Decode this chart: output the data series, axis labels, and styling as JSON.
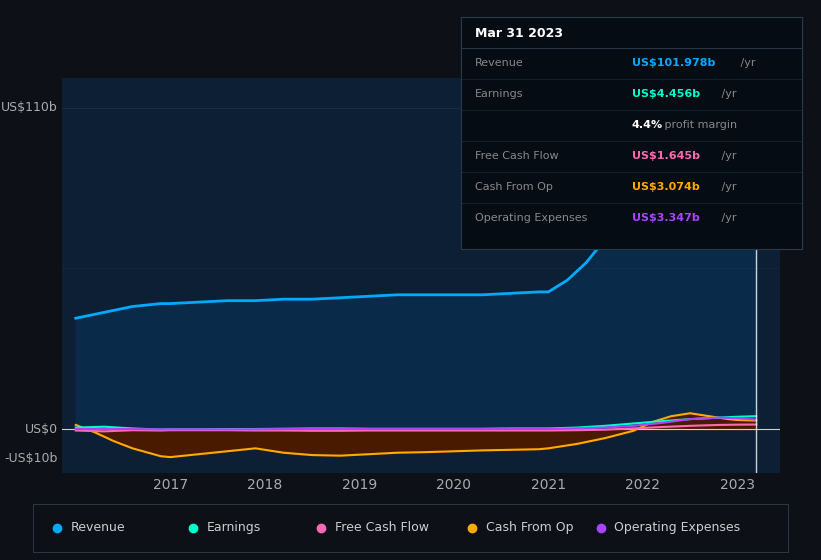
{
  "bg_color": "#0d1117",
  "plot_bg_color": "#0d1f35",
  "ylabel_top": "US$110b",
  "ylabel_zero": "US$0",
  "ylabel_neg": "-US$10b",
  "x_ticks": [
    2017,
    2018,
    2019,
    2020,
    2021,
    2022,
    2023
  ],
  "legend": [
    {
      "label": "Revenue",
      "color": "#00aaff"
    },
    {
      "label": "Earnings",
      "color": "#00ffcc"
    },
    {
      "label": "Free Cash Flow",
      "color": "#ff69b4"
    },
    {
      "label": "Cash From Op",
      "color": "#ffaa00"
    },
    {
      "label": "Operating Expenses",
      "color": "#aa44ff"
    }
  ],
  "tooltip_title": "Mar 31 2023",
  "tooltip_rows": [
    {
      "label": "Revenue",
      "value": "US$101.978b",
      "suffix": " /yr",
      "value_color": "#00aaff",
      "is_margin": false
    },
    {
      "label": "Earnings",
      "value": "US$4.456b",
      "suffix": " /yr",
      "value_color": "#00ffcc",
      "is_margin": false
    },
    {
      "label": "",
      "value": "4.4%",
      "suffix": " profit margin",
      "value_color": "#ffffff",
      "is_margin": true
    },
    {
      "label": "Free Cash Flow",
      "value": "US$1.645b",
      "suffix": " /yr",
      "value_color": "#ff69b4",
      "is_margin": false
    },
    {
      "label": "Cash From Op",
      "value": "US$3.074b",
      "suffix": " /yr",
      "value_color": "#ffaa00",
      "is_margin": false
    },
    {
      "label": "Operating Expenses",
      "value": "US$3.347b",
      "suffix": " /yr",
      "value_color": "#aa44ff",
      "is_margin": false
    }
  ],
  "vertical_line_x": 2023.2,
  "revenue_x": [
    2016.0,
    2016.3,
    2016.6,
    2016.9,
    2017.0,
    2017.3,
    2017.6,
    2017.9,
    2018.2,
    2018.5,
    2018.8,
    2019.1,
    2019.4,
    2019.7,
    2020.0,
    2020.3,
    2020.6,
    2020.9,
    2021.0,
    2021.2,
    2021.4,
    2021.6,
    2021.8,
    2022.0,
    2022.2,
    2022.5,
    2022.8,
    2023.0,
    2023.2
  ],
  "revenue_y": [
    38,
    40,
    42,
    43,
    43,
    43.5,
    44,
    44,
    44.5,
    44.5,
    45,
    45.5,
    46,
    46,
    46,
    46,
    46.5,
    47,
    47,
    51,
    57,
    65,
    74,
    83,
    91,
    97,
    100,
    101.5,
    102
  ],
  "revenue_color": "#00aaff",
  "revenue_fill": "#0a2a4a",
  "earnings_x": [
    2016.0,
    2016.3,
    2016.6,
    2016.9,
    2017.0,
    2017.3,
    2017.6,
    2017.9,
    2018.2,
    2018.5,
    2018.8,
    2019.1,
    2019.4,
    2019.7,
    2020.0,
    2020.3,
    2020.6,
    2020.9,
    2021.0,
    2021.3,
    2021.6,
    2021.9,
    2022.2,
    2022.5,
    2022.8,
    2023.0,
    2023.2
  ],
  "earnings_y": [
    0.6,
    0.9,
    0.3,
    -0.1,
    0.0,
    0.0,
    0.1,
    0.1,
    0.2,
    0.3,
    0.3,
    0.2,
    0.2,
    0.2,
    0.2,
    0.2,
    0.3,
    0.3,
    0.3,
    0.6,
    1.2,
    2.0,
    2.8,
    3.5,
    4.0,
    4.3,
    4.5
  ],
  "earnings_color": "#00ffcc",
  "fcf_x": [
    2016.0,
    2016.3,
    2016.6,
    2016.9,
    2017.0,
    2017.3,
    2017.6,
    2017.9,
    2018.2,
    2018.5,
    2018.8,
    2019.1,
    2019.4,
    2019.7,
    2020.0,
    2020.3,
    2020.6,
    2020.9,
    2021.0,
    2021.3,
    2021.6,
    2021.9,
    2022.2,
    2022.5,
    2022.8,
    2023.0,
    2023.2
  ],
  "fcf_y": [
    -0.4,
    -0.7,
    -0.3,
    -0.4,
    -0.3,
    -0.3,
    -0.3,
    -0.4,
    -0.4,
    -0.5,
    -0.5,
    -0.4,
    -0.4,
    -0.4,
    -0.4,
    -0.4,
    -0.4,
    -0.4,
    -0.4,
    -0.3,
    -0.1,
    0.3,
    0.8,
    1.2,
    1.5,
    1.6,
    1.65
  ],
  "fcf_color": "#ff69b4",
  "cop_x": [
    2016.0,
    2016.2,
    2016.4,
    2016.6,
    2016.9,
    2017.0,
    2017.3,
    2017.6,
    2017.9,
    2018.2,
    2018.5,
    2018.8,
    2019.1,
    2019.4,
    2019.7,
    2020.0,
    2020.3,
    2020.6,
    2020.9,
    2021.0,
    2021.3,
    2021.6,
    2021.9,
    2022.1,
    2022.3,
    2022.5,
    2022.7,
    2022.9,
    2023.0,
    2023.2
  ],
  "cop_y": [
    1.5,
    -1.0,
    -4.0,
    -6.5,
    -9.2,
    -9.5,
    -8.5,
    -7.5,
    -6.5,
    -8.0,
    -8.8,
    -9.0,
    -8.5,
    -8.0,
    -7.8,
    -7.5,
    -7.2,
    -7.0,
    -6.8,
    -6.5,
    -5.0,
    -3.0,
    -0.5,
    2.5,
    4.5,
    5.5,
    4.5,
    3.5,
    3.2,
    3.0
  ],
  "cop_color": "#ffaa00",
  "cop_fill": "#4a1a00",
  "ope_x": [
    2016.0,
    2016.3,
    2016.6,
    2016.9,
    2017.0,
    2017.3,
    2017.6,
    2017.9,
    2018.2,
    2018.5,
    2018.8,
    2019.1,
    2019.4,
    2019.7,
    2020.0,
    2020.3,
    2020.6,
    2020.9,
    2021.0,
    2021.3,
    2021.6,
    2021.9,
    2022.2,
    2022.5,
    2022.8,
    2023.0,
    2023.2
  ],
  "ope_y": [
    0.1,
    0.1,
    0.1,
    0.0,
    0.0,
    0.0,
    0.0,
    0.0,
    0.1,
    0.1,
    0.1,
    0.1,
    0.1,
    0.1,
    0.1,
    0.1,
    0.1,
    0.1,
    0.1,
    0.3,
    0.6,
    1.2,
    2.2,
    3.5,
    4.0,
    3.8,
    3.35
  ],
  "ope_color": "#aa44ff",
  "ylim": [
    -15,
    120
  ],
  "xlim": [
    2015.85,
    2023.45
  ]
}
